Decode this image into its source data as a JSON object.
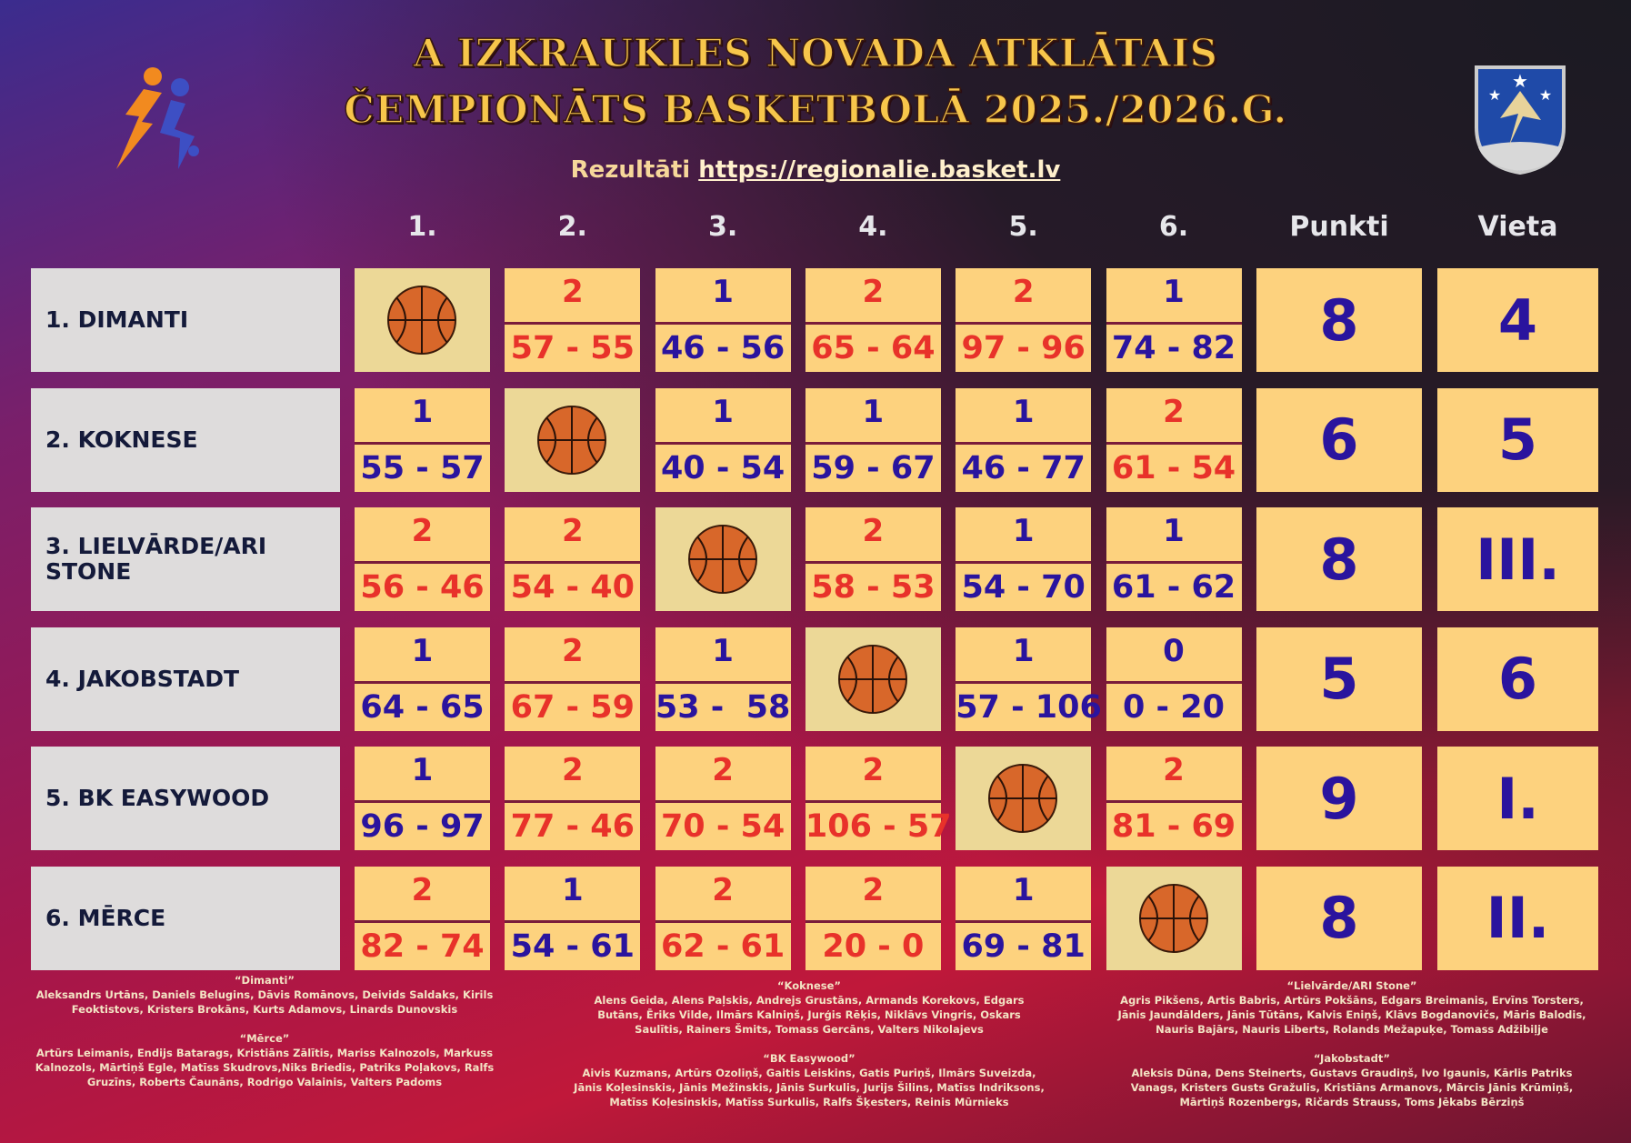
{
  "header": {
    "title_lines": [
      "A IZKRAUKLES NOVADA ATKLĀTAIS",
      "ČEMPIONĀTS BASKETBOLĀ 2025./2026.G."
    ],
    "results_label": "Rezultāti",
    "results_link": "https://regionalie.basket.lv"
  },
  "table": {
    "columns": [
      "1.",
      "2.",
      "3.",
      "4.",
      "5.",
      "6.",
      "Punkti",
      "Vieta"
    ],
    "rows": [
      {
        "team": "1. DIMANTI",
        "cells": [
          null,
          {
            "points": 2,
            "score": "57 - 55"
          },
          {
            "points": 1,
            "score": "46 - 56"
          },
          {
            "points": 2,
            "score": "65 - 64"
          },
          {
            "points": 2,
            "score": "97 - 96"
          },
          {
            "points": 1,
            "score": "74 - 82"
          }
        ],
        "punkti": 8,
        "vieta": "4"
      },
      {
        "team": "2. KOKNESE",
        "cells": [
          {
            "points": 1,
            "score": "55 - 57"
          },
          null,
          {
            "points": 1,
            "score": "40 - 54"
          },
          {
            "points": 1,
            "score": "59 - 67"
          },
          {
            "points": 1,
            "score": "46 - 77"
          },
          {
            "points": 2,
            "score": "61 - 54"
          }
        ],
        "punkti": 6,
        "vieta": "5"
      },
      {
        "team": "3. LIELVĀRDE/ARI STONE",
        "cells": [
          {
            "points": 2,
            "score": "56 - 46"
          },
          {
            "points": 2,
            "score": "54 - 40"
          },
          null,
          {
            "points": 2,
            "score": "58 - 53"
          },
          {
            "points": 1,
            "score": "54 - 70"
          },
          {
            "points": 1,
            "score": "61 - 62"
          }
        ],
        "punkti": 8,
        "vieta": "III."
      },
      {
        "team": "4. JAKOBSTADT",
        "cells": [
          {
            "points": 1,
            "score": "64 - 65"
          },
          {
            "points": 2,
            "score": "67 - 59"
          },
          {
            "points": 1,
            "score": "53 -  58"
          },
          null,
          {
            "points": 1,
            "score": "57 - 106"
          },
          {
            "points": 0,
            "score": "0 - 20"
          }
        ],
        "punkti": 5,
        "vieta": "6"
      },
      {
        "team": "5. BK EASYWOOD",
        "cells": [
          {
            "points": 1,
            "score": "96 - 97"
          },
          {
            "points": 2,
            "score": "77 - 46"
          },
          {
            "points": 2,
            "score": "70 - 54"
          },
          {
            "points": 2,
            "score": "106 - 57"
          },
          null,
          {
            "points": 2,
            "score": "81 - 69"
          }
        ],
        "punkti": 9,
        "vieta": "I."
      },
      {
        "team": "6. MĒRCE",
        "cells": [
          {
            "points": 2,
            "score": "82 - 74"
          },
          {
            "points": 1,
            "score": "54 - 61"
          },
          {
            "points": 2,
            "score": "62 - 61"
          },
          {
            "points": 2,
            "score": "20 - 0"
          },
          {
            "points": 1,
            "score": "69 - 81"
          },
          null
        ],
        "punkti": 8,
        "vieta": "II."
      }
    ]
  },
  "rosters": [
    [
      {
        "title": "“Dimanti”",
        "players": "Aleksandrs Urtāns, Daniels Belugins, Dāvis Romānovs, Deivids Saldaks, Kirils Feoktistovs, Kristers Brokāns, Kurts Adamovs, Linards Dunovskis"
      },
      {
        "title": "“Mērce”",
        "players": "Artūrs Leimanis, Endijs Batarags, Kristiāns Zālītis, Mariss Kalnozols, Markuss Kalnozols, Mārtiņš Egle, Matīss Skudrovs,Niks Briedis, Patriks Poļakovs, Ralfs Gruzīns, Roberts Čaunāns, Rodrigo Valainis, Valters Padoms"
      }
    ],
    [
      {
        "title": "“Koknese”",
        "players": "Alens Geida, Alens Paļskis, Andrejs Grustāns, Armands Korekovs, Edgars Butāns, Ēriks Vilde, Ilmārs Kalniņš, Jurģis Rēķis, Niklāvs Vingris, Oskars Saulītis, Rainers Šmits, Tomass Gercāns, Valters Nikolajevs"
      },
      {
        "title": "“BK Easywood”",
        "players": "Aivis Kuzmans, Artūrs Ozoliņš, Gaitis Leiskins, Gatis Puriņš, Ilmārs Suveizda, Jānis Koļesinskis, Jānis Mežinskis, Jānis Surkulis, Jurijs Šilins, Matīss Indriksons, Matīss Koļesinskis, Matīss Surkulis, Ralfs Šķesters, Reinis Mūrnieks"
      }
    ],
    [
      {
        "title": "“Lielvārde/ARI Stone”",
        "players": "Agris Pikšens, Artis Babris, Artūrs Pokšāns, Edgars Breimanis, Ervīns Torsters, Jānis Jaundālders, Jānis Tūtāns, Kalvis Eniņš, Klāvs Bogdanovičs, Māris Balodis, Nauris Bajārs, Nauris Liberts, Rolands Mežapuķe, Tomass Adžibiļje"
      },
      {
        "title": "“Jakobstadt”",
        "players": "Aleksis Dūna, Dens Steinerts, Gustavs Graudiņš, Ivo Igaunis, Kārlis Patriks Vanags, Kristers Gusts Gražulis, Kristiāns Armanovs, Mārcis Jānis Krūmiņš, Mārtiņš Rozenbergs, Ričards Strauss, Toms Jēkabs Bērziņš"
      }
    ]
  ]
}
